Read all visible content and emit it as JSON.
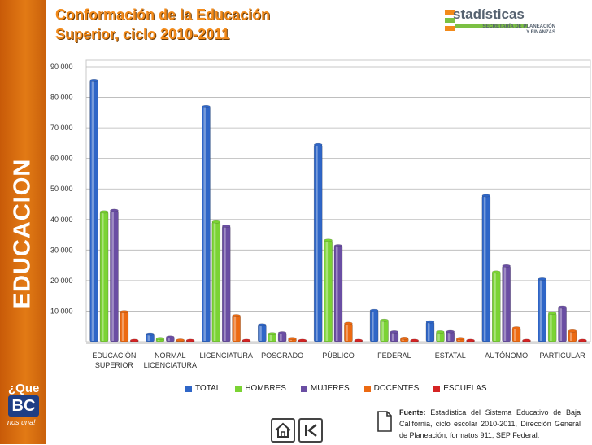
{
  "sidebar": {
    "label": "EDUCACION",
    "logo": {
      "line1": "¿Que",
      "line2": "BC",
      "line3": "nos una!"
    }
  },
  "header": {
    "title_line1": "Conformación de la Educación",
    "title_line2": "Superior, ciclo 2010-2011"
  },
  "brand": {
    "wordmark": "stadísticas",
    "sub_line1": "SECRETARÍA DE PLANEACIÓN",
    "sub_line2": "Y FINANZAS"
  },
  "colors": {
    "TOTAL": "#2f66c7",
    "HOMBRES": "#7bd334",
    "MUJERES": "#6a4ea3",
    "DOCENTES": "#ec6a12",
    "ESCUELAS": "#d52424",
    "sidebar": "#e27a15",
    "title": "#f28a1a"
  },
  "chart_data": {
    "type": "bar",
    "categories": [
      [
        "EDUCACIÓN",
        "SUPERIOR"
      ],
      [
        "NORMAL",
        "LICENCIATURA"
      ],
      [
        "LICENCIATURA"
      ],
      [
        "POSGRADO"
      ],
      [
        "PÚBLICO"
      ],
      [
        "FEDERAL"
      ],
      [
        "ESTATAL"
      ],
      [
        "AUTÓNOMO"
      ],
      [
        "PARTICULAR"
      ]
    ],
    "series": [
      {
        "name": "TOTAL",
        "values": [
          85500,
          2500,
          77000,
          5500,
          64500,
          10200,
          6500,
          47800,
          20500
        ]
      },
      {
        "name": "HOMBRES",
        "values": [
          42500,
          1000,
          39200,
          2600,
          33200,
          7000,
          3200,
          22800,
          9300
        ]
      },
      {
        "name": "MUJERES",
        "values": [
          43000,
          1500,
          37800,
          2900,
          31400,
          3200,
          3300,
          24800,
          11300
        ]
      },
      {
        "name": "DOCENTES",
        "values": [
          9800,
          500,
          8500,
          1000,
          6000,
          1100,
          1000,
          4500,
          3500
        ]
      },
      {
        "name": "ESCUELAS",
        "values": [
          150,
          30,
          140,
          80,
          60,
          30,
          20,
          60,
          130
        ]
      }
    ],
    "yticks": [
      "90 000",
      "80 000",
      "70 000",
      "60 000",
      "50 000",
      "40 000",
      "30 000",
      "20 000",
      "10 000"
    ],
    "ylim": [
      0,
      90000
    ],
    "grid": true,
    "legend": "bottom"
  },
  "source": {
    "label": "Fuente:",
    "text": "Estadística del Sistema Educativo de Baja California, ciclo escolar 2010-2011, Dirección General de Planeación, formatos 911, SEP Federal."
  }
}
